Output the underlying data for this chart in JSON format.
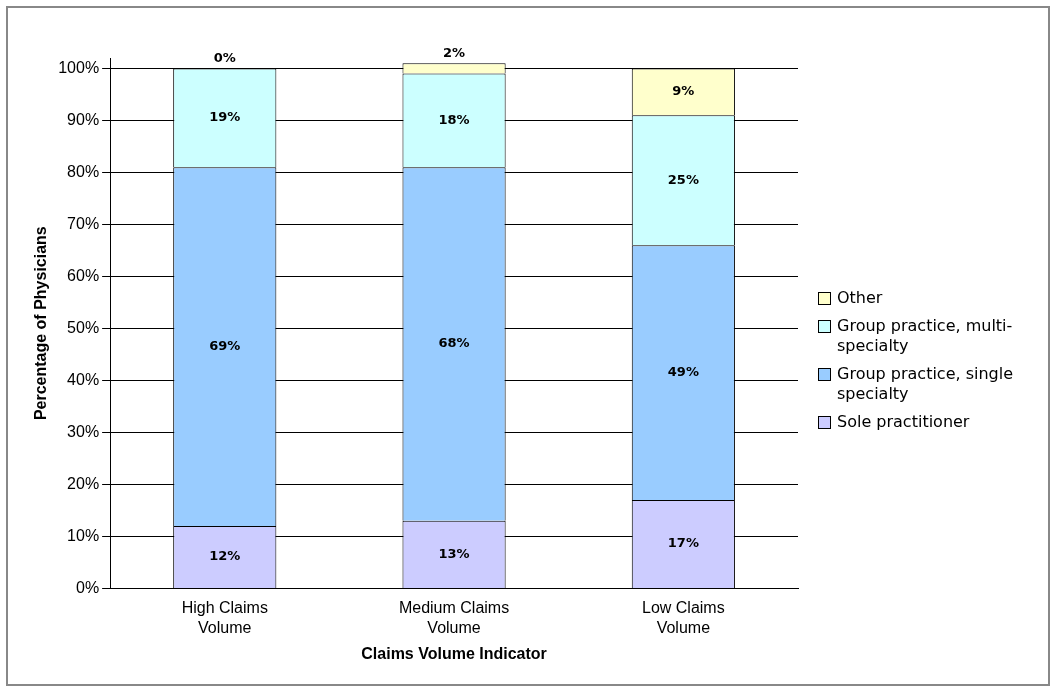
{
  "chart_data": {
    "type": "bar",
    "stacked": true,
    "xlabel": "Claims Volume Indicator",
    "ylabel": "Percentage of Physicians",
    "categories": [
      "High Claims Volume",
      "Medium Claims Volume",
      "Low Claims Volume"
    ],
    "series": [
      {
        "name": "Sole practitioner",
        "color": "#ccccff",
        "values": [
          12,
          13,
          17
        ],
        "value_labels": [
          "12%",
          "13%",
          "17%"
        ]
      },
      {
        "name": "Group practice, single specialty",
        "color": "#99ccff",
        "values": [
          69,
          68,
          49
        ],
        "value_labels": [
          "69%",
          "68%",
          "49%"
        ]
      },
      {
        "name": "Group practice, multi-specialty",
        "color": "#ccffff",
        "values": [
          19,
          18,
          25
        ],
        "value_labels": [
          "19%",
          "18%",
          "25%"
        ]
      },
      {
        "name": "Other",
        "color": "#ffffcc",
        "values": [
          0,
          2,
          9
        ],
        "value_labels": [
          "0%",
          "2%",
          "9%"
        ]
      }
    ],
    "ylim": [
      0,
      102
    ],
    "yticks": [
      {
        "value": 0,
        "label": "0%"
      },
      {
        "value": 10,
        "label": "10%"
      },
      {
        "value": 20,
        "label": "20%"
      },
      {
        "value": 30,
        "label": "30%"
      },
      {
        "value": 40,
        "label": "40%"
      },
      {
        "value": 50,
        "label": "50%"
      },
      {
        "value": 60,
        "label": "60%"
      },
      {
        "value": 70,
        "label": "70%"
      },
      {
        "value": 80,
        "label": "80%"
      },
      {
        "value": 90,
        "label": "90%"
      },
      {
        "value": 100,
        "label": "100%"
      }
    ],
    "grid": "y",
    "legend": "right"
  }
}
